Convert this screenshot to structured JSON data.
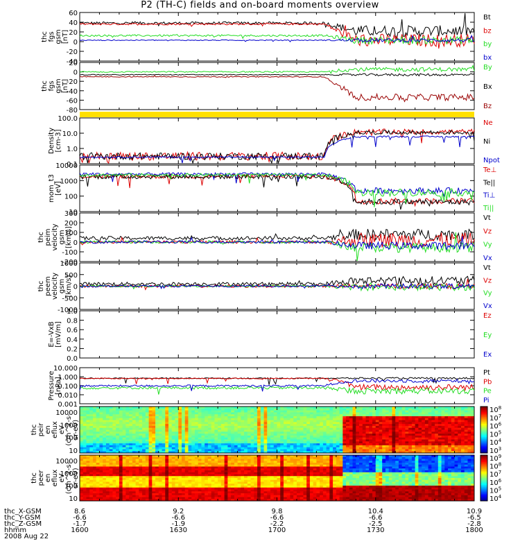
{
  "title": "P2 (TH-C) fields and on-board moments overview",
  "colors": {
    "black": "#000000",
    "red": "#dd0000",
    "green": "#22dd22",
    "blue": "#0000cc",
    "darkred": "#990000",
    "gold": "#ffe000"
  },
  "chart_data": {
    "type": "line",
    "x": {
      "ticks": [
        "8.6",
        "9.2",
        "9.8",
        "10.4",
        "10.9"
      ],
      "rows": [
        {
          "label": "thc_X-GSM",
          "values": [
            "8.6",
            "9.2",
            "9.8",
            "10.4",
            "10.9"
          ]
        },
        {
          "label": "thc_Y-GSM",
          "values": [
            "-6.6",
            "-6.6",
            "-6.6",
            "-6.6",
            "-6.5"
          ]
        },
        {
          "label": "thc_Z-GSM",
          "values": [
            "-1.7",
            "-1.9",
            "-2.2",
            "-2.5",
            "-2.8"
          ]
        },
        {
          "label": "hhmm",
          "values": [
            "1600",
            "1630",
            "1700",
            "1730",
            "1800"
          ]
        }
      ],
      "date": "2008 Aug 22"
    },
    "panels": [
      {
        "id": "fgs-gsm-1",
        "ylabel": [
          "thc",
          "fgs",
          "gsm",
          "[nT]"
        ],
        "ylim": [
          -40,
          65
        ],
        "yticks": [
          "60",
          "40",
          "20",
          "0",
          "-20",
          "-40"
        ],
        "series": [
          {
            "name": "Bt",
            "color": "black",
            "base": 42,
            "late": 25,
            "noise": 3,
            "lateNoise": 12
          },
          {
            "name": "bz",
            "color": "red",
            "base": 40,
            "late": 5,
            "noise": 2,
            "lateNoise": 14
          },
          {
            "name": "by",
            "color": "green",
            "base": 15,
            "late": 5,
            "noise": 2,
            "lateNoise": 8
          },
          {
            "name": "bx",
            "color": "blue",
            "base": 5,
            "late": 5,
            "noise": 1,
            "lateNoise": 4
          }
        ]
      },
      {
        "id": "fgs-gsm-2",
        "ylabel": [
          "thc",
          "fgs",
          "gsm",
          "[nT]"
        ],
        "ylim": [
          -90,
          25
        ],
        "yticks": [
          "20",
          "0",
          "-20",
          "-40",
          "-60",
          "-80"
        ],
        "series": [
          {
            "name": "By",
            "color": "green",
            "base": 2,
            "late": 8,
            "noise": 1.5,
            "lateNoise": 5
          },
          {
            "name": "Bx",
            "color": "black",
            "base": -5,
            "late": -5,
            "noise": 1,
            "lateNoise": 3
          },
          {
            "name": "Bz",
            "color": "darkred",
            "base": -10,
            "late": -60,
            "noise": 1,
            "lateNoise": 8
          }
        ]
      },
      {
        "id": "density",
        "ylabel": [
          "Density",
          "[cm-3]"
        ],
        "log": true,
        "ylim": [
          0.1,
          200
        ],
        "yticks": [
          "100.0",
          "10.0",
          "1.0",
          "0.1"
        ],
        "series": [
          {
            "name": "Ne",
            "color": "red",
            "base": 0.35,
            "late": 20,
            "noise": 0.3,
            "lateNoise": 0.2
          },
          {
            "name": "Ni",
            "color": "black",
            "base": 0.35,
            "late": 18,
            "noise": 0.25,
            "lateNoise": 0.15
          },
          {
            "name": "Npot",
            "color": "blue",
            "base": 0.3,
            "late": 9,
            "noise": 0.05,
            "lateNoise": 0.05
          }
        ]
      },
      {
        "id": "temperature",
        "ylabel": [
          "mom_t3",
          "[eV]"
        ],
        "log": true,
        "ylim": [
          8,
          10000
        ],
        "yticks": [
          "10000",
          "1000",
          "100",
          "10"
        ],
        "series": [
          {
            "name": "Te⊥",
            "color": "red",
            "base": 1800,
            "late": 40,
            "noise": 0.15,
            "lateNoise": 0.2
          },
          {
            "name": "Te||",
            "color": "black",
            "base": 1700,
            "late": 35,
            "noise": 0.15,
            "lateNoise": 0.2
          },
          {
            "name": "Ti⊥",
            "color": "blue",
            "base": 2500,
            "late": 200,
            "noise": 0.1,
            "lateNoise": 0.2
          },
          {
            "name": "Ti||",
            "color": "green",
            "base": 2200,
            "late": 150,
            "noise": 0.1,
            "lateNoise": 0.25
          }
        ]
      },
      {
        "id": "peim-velocity",
        "ylabel": [
          "thc",
          "peim",
          "velocity",
          "gsm",
          "[km/s]"
        ],
        "ylim": [
          -210,
          310
        ],
        "yticks": [
          "300",
          "200",
          "100",
          "0",
          "-100",
          "-200"
        ],
        "series": [
          {
            "name": "Vt",
            "color": "black",
            "base": 40,
            "late": 80,
            "noise": 20,
            "lateNoise": 60
          },
          {
            "name": "Vz",
            "color": "red",
            "base": 0,
            "late": 20,
            "noise": 15,
            "lateNoise": 80
          },
          {
            "name": "Vy",
            "color": "green",
            "base": 0,
            "late": -60,
            "noise": 15,
            "lateNoise": 50
          },
          {
            "name": "Vx",
            "color": "blue",
            "base": 0,
            "late": -40,
            "noise": 15,
            "lateNoise": 40
          }
        ]
      },
      {
        "id": "peem-velocity",
        "ylabel": [
          "thc",
          "peem",
          "velocity",
          "gsm",
          "[km/s]"
        ],
        "ylim": [
          -1050,
          1050
        ],
        "yticks": [
          "1000",
          "500",
          "0",
          "-500",
          "-1000"
        ],
        "series": [
          {
            "name": "Vt",
            "color": "black",
            "base": 100,
            "late": 250,
            "noise": 80,
            "lateNoise": 200
          },
          {
            "name": "Vz",
            "color": "red",
            "base": 0,
            "late": 0,
            "noise": 60,
            "lateNoise": 120
          },
          {
            "name": "Vy",
            "color": "green",
            "base": 0,
            "late": -50,
            "noise": 40,
            "lateNoise": 150
          },
          {
            "name": "Vx",
            "color": "blue",
            "base": 0,
            "late": 0,
            "noise": 40,
            "lateNoise": 110
          }
        ]
      },
      {
        "id": "efield",
        "ylabel": [
          "E=-VxB",
          "[mV/m]"
        ],
        "ylim": [
          0,
          1
        ],
        "yticks": [
          "1.0",
          "0.8",
          "0.6",
          "0.4",
          "0.2",
          "0.0"
        ],
        "series": [
          {
            "name": "Ez",
            "color": "red"
          },
          {
            "name": "Ey",
            "color": "green"
          },
          {
            "name": "Ex",
            "color": "blue"
          }
        ]
      },
      {
        "id": "pressure",
        "ylabel": [
          "Pressure",
          "[nPa]"
        ],
        "log": true,
        "ylim": [
          0.001,
          15
        ],
        "yticks": [
          "10.000",
          "1.000",
          "0.100",
          "0.010",
          "0.001"
        ],
        "series": [
          {
            "name": "Pt",
            "color": "black",
            "base": 0.9,
            "late": 0.9,
            "noise": 0.06,
            "lateNoise": 0.1
          },
          {
            "name": "Pb",
            "color": "red",
            "base": 0.85,
            "late": 0.08,
            "noise": 0.06,
            "lateNoise": 0.35
          },
          {
            "name": "Pe",
            "color": "green",
            "base": 0.07,
            "late": 0.03,
            "noise": 0.15,
            "lateNoise": 0.35
          },
          {
            "name": "Pi",
            "color": "blue",
            "base": 0.12,
            "late": 0.45,
            "noise": 0.1,
            "lateNoise": 0.2
          }
        ]
      }
    ],
    "spectrograms": [
      {
        "id": "peir-spec",
        "type": "heatmap",
        "ylabel": [
          "thc",
          "peir",
          "en",
          "eflux",
          "eV",
          "(cm^2-s-",
          "sr-eV)"
        ],
        "yticks": [
          "10000",
          "1000",
          "100",
          "10"
        ],
        "colorbar": [
          "10^8",
          "10^7",
          "10^6",
          "10^5",
          "10^4",
          "10^3"
        ]
      },
      {
        "id": "peer-spec",
        "type": "heatmap",
        "ylabel": [
          "thc",
          "peer",
          "en",
          "eflux",
          "eV",
          "(cm^2-s-",
          "sr-eV)"
        ],
        "yticks": [
          "10000",
          "1000",
          "100",
          "10"
        ],
        "colorbar": [
          "10^9",
          "10^8",
          "10^7",
          "10^6",
          "10^5",
          "10^4"
        ]
      }
    ]
  }
}
